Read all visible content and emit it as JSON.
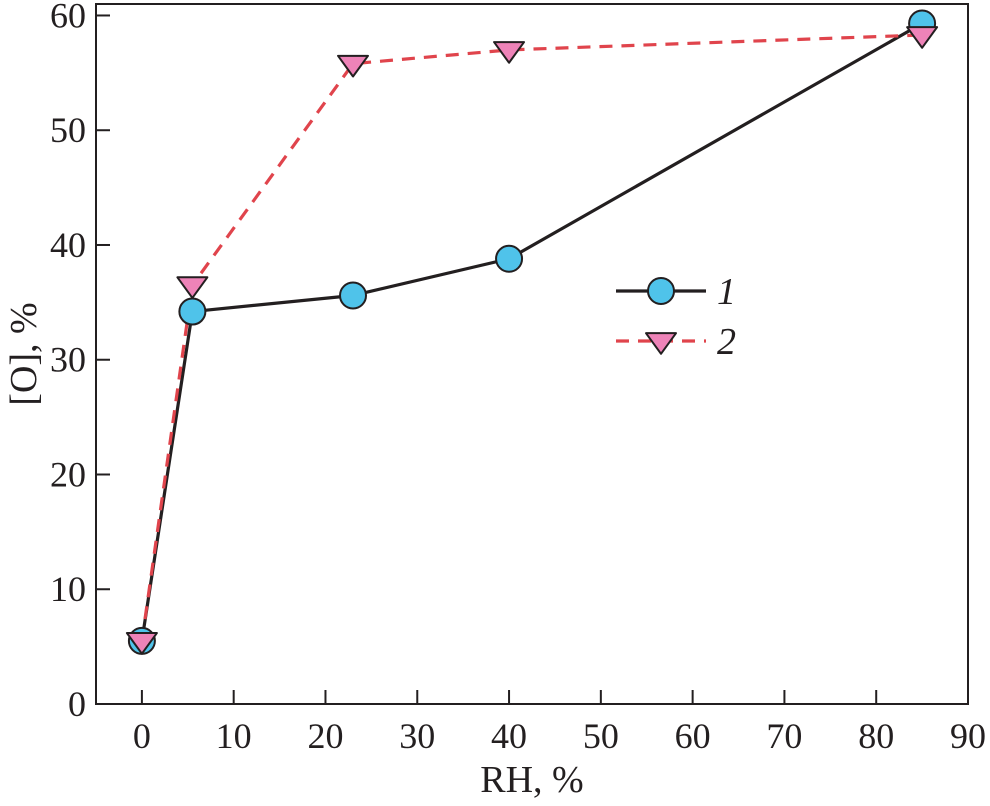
{
  "chart_data": {
    "type": "line",
    "title": "",
    "xlabel": "RH, %",
    "ylabel": "[O], %",
    "xlim": [
      -5,
      90
    ],
    "ylim": [
      0,
      61
    ],
    "x_ticks": [
      0,
      10,
      20,
      30,
      40,
      50,
      60,
      70,
      80,
      90
    ],
    "y_ticks": [
      0,
      10,
      20,
      30,
      40,
      50,
      60
    ],
    "grid": false,
    "legend_position": "center-right",
    "series": [
      {
        "name": "1",
        "line_style": "solid",
        "marker": "circle",
        "line_color": "#231f20",
        "marker_color": "#4fc3ea",
        "x": [
          0,
          5.5,
          23,
          40,
          85
        ],
        "y": [
          5.5,
          34.2,
          35.6,
          38.8,
          59.3
        ]
      },
      {
        "name": "2",
        "line_style": "dashed",
        "marker": "triangle-down",
        "line_color": "#e0444c",
        "marker_color": "#ee83b8",
        "x": [
          0,
          5.5,
          23,
          40,
          85
        ],
        "y": [
          5.5,
          36.5,
          55.8,
          57.0,
          58.3
        ]
      }
    ]
  }
}
